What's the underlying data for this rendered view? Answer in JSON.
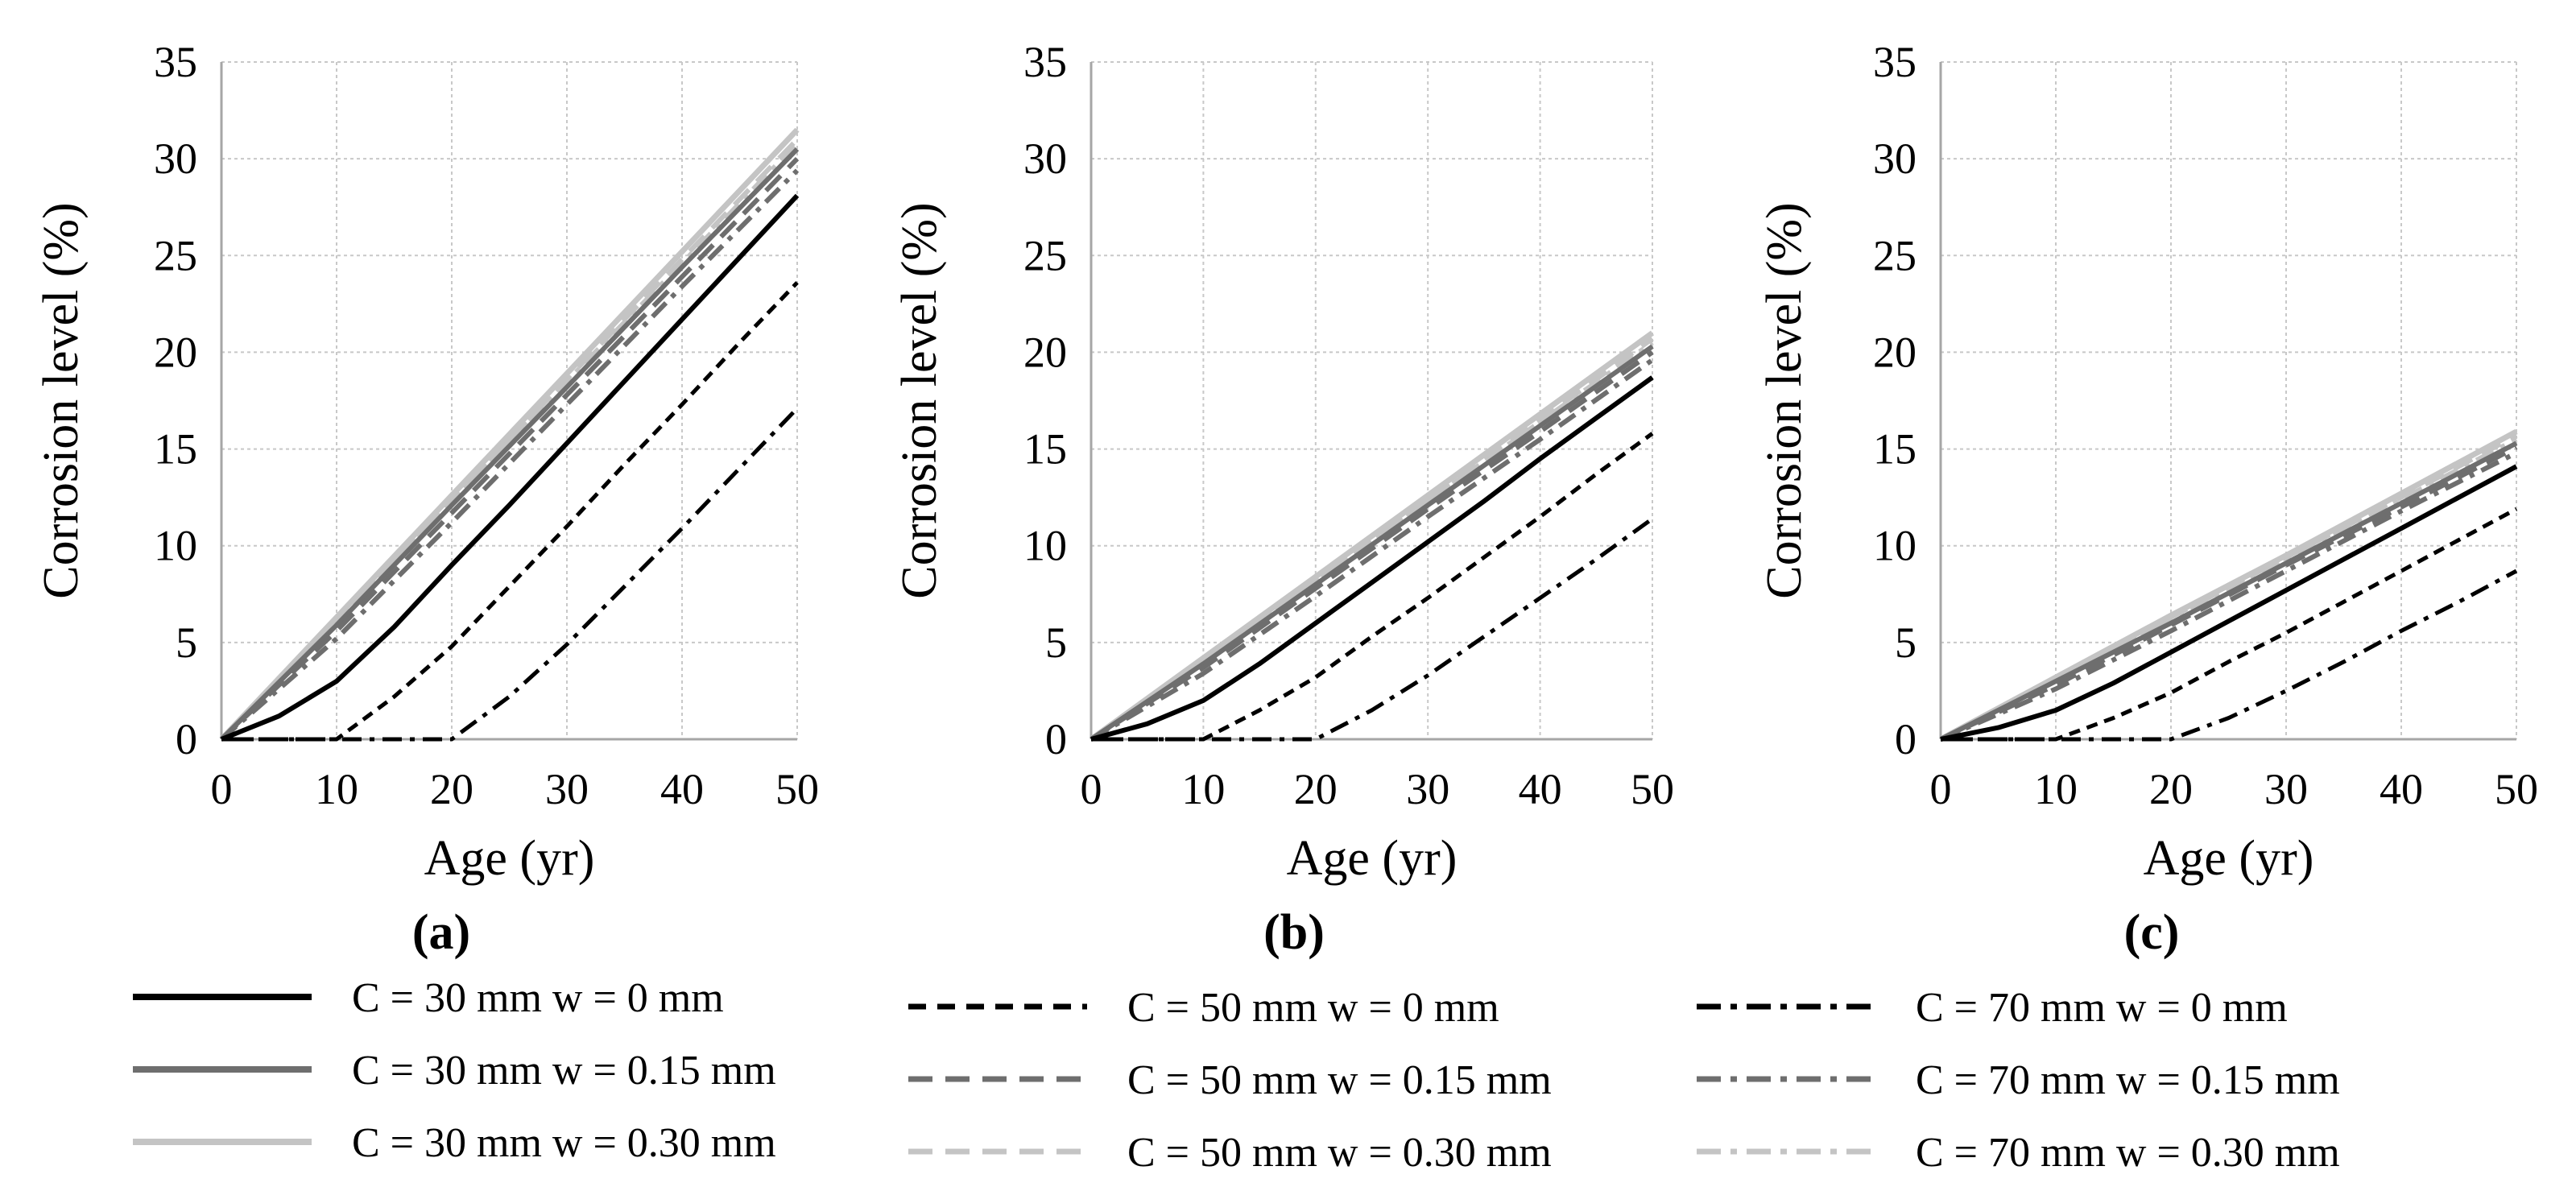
{
  "figure": {
    "legend": [
      {
        "label": "C = 30 mm w = 0 mm",
        "color": "#000000",
        "dash": "solid"
      },
      {
        "label": "C = 30 mm w = 0.15 mm",
        "color": "#6e6e6e",
        "dash": "solid"
      },
      {
        "label": "C = 30 mm w = 0.30 mm",
        "color": "#c4c4c4",
        "dash": "solid"
      },
      {
        "label": "C = 50 mm w = 0 mm",
        "color": "#000000",
        "dash": "dashed"
      },
      {
        "label": "C = 50 mm w = 0.15 mm",
        "color": "#6e6e6e",
        "dash": "dashed"
      },
      {
        "label": "C = 50 mm w = 0.30 mm",
        "color": "#c4c4c4",
        "dash": "dashed"
      },
      {
        "label": "C = 70 mm w = 0 mm",
        "color": "#000000",
        "dash": "dashdot"
      },
      {
        "label": "C = 70 mm w = 0.15 mm",
        "color": "#6e6e6e",
        "dash": "dashdot"
      },
      {
        "label": "C = 70 mm w = 0.30 mm",
        "color": "#c4c4c4",
        "dash": "dashdot"
      }
    ]
  },
  "chart_data": [
    {
      "type": "line",
      "panel_label": "(a)",
      "xlabel": "Age (yr)",
      "ylabel": "Corrosion level (%)",
      "xlim": [
        0,
        50
      ],
      "ylim": [
        0,
        35
      ],
      "xticks": [
        0,
        10,
        20,
        30,
        40,
        50
      ],
      "yticks": [
        0,
        5,
        10,
        15,
        20,
        25,
        30,
        35
      ],
      "grid": true,
      "series": [
        {
          "name": "C = 30 mm w = 0.30 mm",
          "x": [
            0,
            10,
            20,
            30,
            40,
            50
          ],
          "y": [
            0,
            6.3,
            12.6,
            18.9,
            25.2,
            31.5
          ]
        },
        {
          "name": "C = 50 mm w = 0.30 mm",
          "x": [
            0,
            10,
            20,
            30,
            40,
            50
          ],
          "y": [
            0,
            6.2,
            12.4,
            18.6,
            24.8,
            31.0
          ]
        },
        {
          "name": "C = 70 mm w = 0.30 mm",
          "x": [
            0,
            10,
            20,
            30,
            40,
            50
          ],
          "y": [
            0,
            6.1,
            12.3,
            18.5,
            24.6,
            30.8
          ]
        },
        {
          "name": "C = 30 mm w = 0.15 mm",
          "x": [
            0,
            10,
            20,
            30,
            40,
            50
          ],
          "y": [
            0,
            5.9,
            12.1,
            18.2,
            24.4,
            30.5
          ]
        },
        {
          "name": "C = 50 mm w = 0.15 mm",
          "x": [
            0,
            10,
            20,
            30,
            40,
            50
          ],
          "y": [
            0,
            5.6,
            11.7,
            17.8,
            23.9,
            30.0
          ]
        },
        {
          "name": "C = 70 mm w = 0.15 mm",
          "x": [
            0,
            10,
            20,
            30,
            40,
            50
          ],
          "y": [
            0,
            5.2,
            11.2,
            17.3,
            23.4,
            29.4
          ]
        },
        {
          "name": "C = 30 mm w = 0 mm",
          "x": [
            0,
            5,
            10,
            15,
            20,
            25,
            30,
            35,
            40,
            45,
            50
          ],
          "y": [
            0,
            1.2,
            3.0,
            5.8,
            9.0,
            12.1,
            15.3,
            18.5,
            21.7,
            24.9,
            28.1
          ]
        },
        {
          "name": "C = 50 mm w = 0 mm",
          "x": [
            0,
            5,
            10,
            15,
            20,
            25,
            30,
            35,
            40,
            45,
            50
          ],
          "y": [
            0,
            0,
            0,
            2.2,
            4.8,
            7.9,
            11.0,
            14.2,
            17.3,
            20.5,
            23.6
          ]
        },
        {
          "name": "C = 70 mm w = 0 mm",
          "x": [
            0,
            10,
            20,
            25,
            30,
            35,
            40,
            45,
            50
          ],
          "y": [
            0,
            0,
            0,
            2.2,
            4.9,
            7.9,
            10.9,
            14.0,
            17.1
          ]
        }
      ]
    },
    {
      "type": "line",
      "panel_label": "(b)",
      "xlabel": "Age (yr)",
      "ylabel": "Corrosion level (%)",
      "xlim": [
        0,
        50
      ],
      "ylim": [
        0,
        35
      ],
      "xticks": [
        0,
        10,
        20,
        30,
        40,
        50
      ],
      "yticks": [
        0,
        5,
        10,
        15,
        20,
        25,
        30,
        35
      ],
      "grid": true,
      "series": [
        {
          "name": "C = 30 mm w = 0.30 mm",
          "x": [
            0,
            10,
            20,
            30,
            40,
            50
          ],
          "y": [
            0,
            4.2,
            8.4,
            12.6,
            16.8,
            21.0
          ]
        },
        {
          "name": "C = 50 mm w = 0.30 mm",
          "x": [
            0,
            10,
            20,
            30,
            40,
            50
          ],
          "y": [
            0,
            4.1,
            8.3,
            12.4,
            16.5,
            20.7
          ]
        },
        {
          "name": "C = 70 mm w = 0.30 mm",
          "x": [
            0,
            10,
            20,
            30,
            40,
            50
          ],
          "y": [
            0,
            4.1,
            8.2,
            12.3,
            16.4,
            20.5
          ]
        },
        {
          "name": "C = 30 mm w = 0.15 mm",
          "x": [
            0,
            10,
            20,
            30,
            40,
            50
          ],
          "y": [
            0,
            3.9,
            8.0,
            12.1,
            16.2,
            20.3
          ]
        },
        {
          "name": "C = 50 mm w = 0.15 mm",
          "x": [
            0,
            10,
            20,
            30,
            40,
            50
          ],
          "y": [
            0,
            3.7,
            7.8,
            11.9,
            15.9,
            20.0
          ]
        },
        {
          "name": "C = 70 mm w = 0.15 mm",
          "x": [
            0,
            10,
            20,
            30,
            40,
            50
          ],
          "y": [
            0,
            3.4,
            7.4,
            11.5,
            15.5,
            19.6
          ]
        },
        {
          "name": "C = 30 mm w = 0 mm",
          "x": [
            0,
            5,
            10,
            15,
            20,
            25,
            30,
            35,
            40,
            45,
            50
          ],
          "y": [
            0,
            0.8,
            2.0,
            3.9,
            6.0,
            8.1,
            10.2,
            12.3,
            14.5,
            16.6,
            18.7
          ]
        },
        {
          "name": "C = 50 mm w = 0 mm",
          "x": [
            0,
            5,
            10,
            15,
            20,
            25,
            30,
            35,
            40,
            45,
            50
          ],
          "y": [
            0,
            0,
            0,
            1.5,
            3.2,
            5.3,
            7.3,
            9.4,
            11.5,
            13.7,
            15.8
          ]
        },
        {
          "name": "C = 70 mm w = 0 mm",
          "x": [
            0,
            10,
            20,
            25,
            30,
            35,
            40,
            45,
            50
          ],
          "y": [
            0,
            0,
            0,
            1.5,
            3.3,
            5.3,
            7.3,
            9.3,
            11.4
          ]
        }
      ]
    },
    {
      "type": "line",
      "panel_label": "(c)",
      "xlabel": "Age (yr)",
      "ylabel": "Corrosion level (%)",
      "xlim": [
        0,
        50
      ],
      "ylim": [
        0,
        35
      ],
      "xticks": [
        0,
        10,
        20,
        30,
        40,
        50
      ],
      "yticks": [
        0,
        5,
        10,
        15,
        20,
        25,
        30,
        35
      ],
      "grid": true,
      "series": [
        {
          "name": "C = 30 mm w = 0.30 mm",
          "x": [
            0,
            10,
            20,
            30,
            40,
            50
          ],
          "y": [
            0,
            3.2,
            6.4,
            9.5,
            12.7,
            15.9
          ]
        },
        {
          "name": "C = 50 mm w = 0.30 mm",
          "x": [
            0,
            10,
            20,
            30,
            40,
            50
          ],
          "y": [
            0,
            3.1,
            6.3,
            9.4,
            12.5,
            15.7
          ]
        },
        {
          "name": "C = 70 mm w = 0.30 mm",
          "x": [
            0,
            10,
            20,
            30,
            40,
            50
          ],
          "y": [
            0,
            3.1,
            6.2,
            9.3,
            12.4,
            15.5
          ]
        },
        {
          "name": "C = 30 mm w = 0.15 mm",
          "x": [
            0,
            10,
            20,
            30,
            40,
            50
          ],
          "y": [
            0,
            3.0,
            6.0,
            9.1,
            12.2,
            15.3
          ]
        },
        {
          "name": "C = 50 mm w = 0.15 mm",
          "x": [
            0,
            10,
            20,
            30,
            40,
            50
          ],
          "y": [
            0,
            2.8,
            5.9,
            9.0,
            12.0,
            15.1
          ]
        },
        {
          "name": "C = 70 mm w = 0.15 mm",
          "x": [
            0,
            10,
            20,
            30,
            40,
            50
          ],
          "y": [
            0,
            2.6,
            5.6,
            8.7,
            11.8,
            14.8
          ]
        },
        {
          "name": "C = 30 mm w = 0 mm",
          "x": [
            0,
            5,
            10,
            15,
            20,
            25,
            30,
            35,
            40,
            45,
            50
          ],
          "y": [
            0,
            0.6,
            1.5,
            2.9,
            4.5,
            6.1,
            7.7,
            9.3,
            10.9,
            12.5,
            14.1
          ]
        },
        {
          "name": "C = 50 mm w = 0 mm",
          "x": [
            0,
            5,
            10,
            15,
            20,
            25,
            30,
            35,
            40,
            45,
            50
          ],
          "y": [
            0,
            0,
            0,
            1.1,
            2.4,
            4.0,
            5.5,
            7.1,
            8.7,
            10.3,
            11.9
          ]
        },
        {
          "name": "C = 70 mm w = 0 mm",
          "x": [
            0,
            10,
            20,
            25,
            30,
            35,
            40,
            45,
            50
          ],
          "y": [
            0,
            0,
            0,
            1.1,
            2.5,
            4.0,
            5.6,
            7.1,
            8.7
          ]
        }
      ]
    }
  ]
}
